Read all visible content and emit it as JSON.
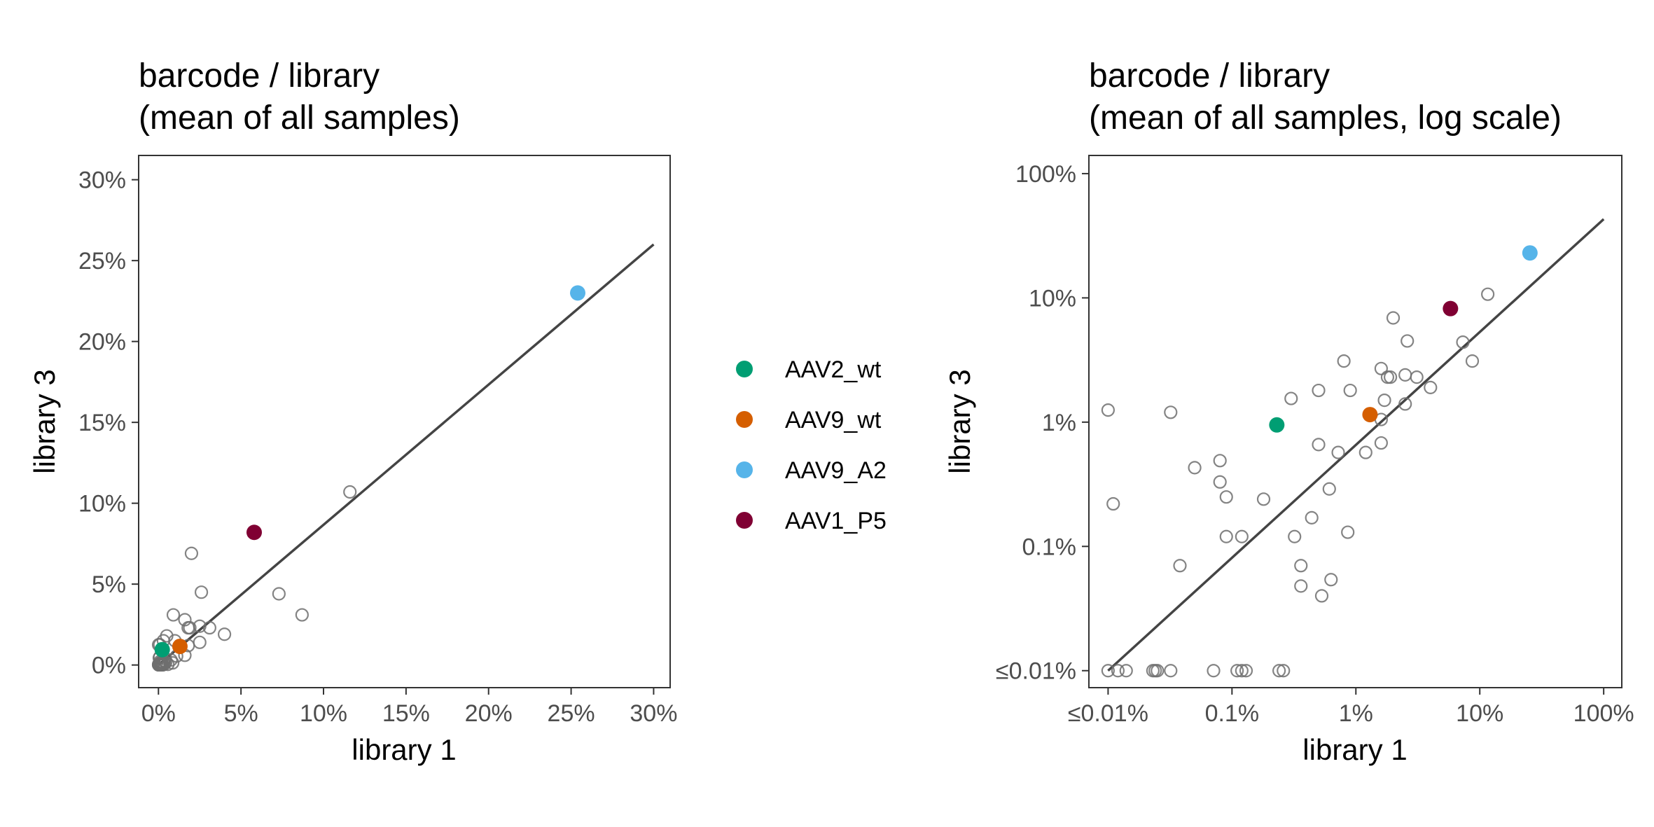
{
  "chart_data": [
    {
      "type": "scatter",
      "title": "barcode / library\n(mean of all samples)",
      "xlabel": "library 1",
      "ylabel": "library 3",
      "scale": "linear",
      "xlim": [
        -0.012,
        0.31
      ],
      "ylim": [
        -0.014,
        0.315
      ],
      "xticks": [
        0,
        0.05,
        0.1,
        0.15,
        0.2,
        0.25,
        0.3
      ],
      "yticks": [
        0,
        0.05,
        0.1,
        0.15,
        0.2,
        0.25,
        0.3
      ],
      "xtick_labels": [
        "0%",
        "5%",
        "10%",
        "15%",
        "20%",
        "25%",
        "30%"
      ],
      "ytick_labels": [
        "0%",
        "5%",
        "10%",
        "15%",
        "20%",
        "25%",
        "30%"
      ],
      "grid": false,
      "reference_line": {
        "x": [
          0.0001,
          0.3
        ],
        "y": [
          0.0001,
          0.26
        ]
      },
      "highlighted": [
        {
          "name": "AAV2_wt",
          "x": 0.0023,
          "y": 0.0095
        },
        {
          "name": "AAV9_wt",
          "x": 0.013,
          "y": 0.0115
        },
        {
          "name": "AAV9_A2",
          "x": 0.254,
          "y": 0.23
        },
        {
          "name": "AAV1_P5",
          "x": 0.058,
          "y": 0.082
        }
      ],
      "points": [
        [
          0.116,
          0.107
        ],
        [
          0.073,
          0.044
        ],
        [
          0.087,
          0.031
        ],
        [
          0.02,
          0.069
        ],
        [
          0.026,
          0.045
        ],
        [
          0.009,
          0.031
        ],
        [
          0.016,
          0.028
        ],
        [
          0.018,
          0.023
        ],
        [
          0.019,
          0.023
        ],
        [
          0.025,
          0.024
        ],
        [
          0.031,
          0.023
        ],
        [
          0.04,
          0.019
        ],
        [
          0.025,
          0.014
        ],
        [
          0.005,
          0.018
        ],
        [
          0.003,
          0.015
        ],
        [
          0.01,
          0.015
        ],
        [
          0.016,
          0.006
        ],
        [
          0.018,
          0.012
        ],
        [
          0.011,
          0.0055
        ],
        [
          0.004,
          0.004
        ],
        [
          0.0008,
          0.0125
        ],
        [
          0.0001,
          0.0125
        ],
        [
          0.001,
          0.0022
        ],
        [
          0.0005,
          0.0043
        ],
        [
          0.0035,
          0.0024
        ],
        [
          0.0019,
          0.0018
        ],
        [
          0.0076,
          0.0031
        ],
        [
          0.0044,
          0.0017
        ],
        [
          0.0057,
          0.0004
        ],
        [
          0.0036,
          0.0005
        ],
        [
          0.0086,
          0.0013
        ],
        [
          0.0008,
          0.0049
        ],
        [
          0.0012,
          0.0012
        ],
        [
          0.0004,
          0.0007
        ],
        [
          0.0018,
          0.0002
        ],
        [
          0.0002,
          0.0001
        ],
        [
          0.0001,
          0.0001
        ],
        [
          0.0003,
          0.0001
        ],
        [
          0.0007,
          0.0001
        ],
        [
          0.0012,
          0.0001
        ],
        [
          0.0024,
          0.0001
        ],
        [
          0.0013,
          0.0002
        ],
        [
          0.0026,
          0.0001
        ],
        [
          0.0006,
          0.0002
        ],
        [
          0.0001,
          0.0003
        ],
        [
          0.0002,
          0.0002
        ],
        [
          0.0005,
          0.0005
        ],
        [
          0.0009,
          0.0001
        ],
        [
          0.0015,
          0.0006
        ],
        [
          0.003,
          0.0015
        ]
      ]
    },
    {
      "type": "scatter",
      "title": "barcode / library\n(mean of all samples, log scale)",
      "xlabel": "library 1",
      "ylabel": "library 3",
      "scale": "log10",
      "xlim": [
        7e-05,
        1.4
      ],
      "ylim": [
        7.3e-05,
        1.4
      ],
      "xticks": [
        0.0001,
        0.001,
        0.01,
        0.1,
        1
      ],
      "yticks": [
        0.0001,
        0.001,
        0.01,
        0.1,
        1
      ],
      "xtick_labels": [
        "≤0.01%",
        "0.1%",
        "1%",
        "10%",
        "100%"
      ],
      "ytick_labels": [
        "≤0.01%",
        "0.1%",
        "1%",
        "10%",
        "100%"
      ],
      "grid": false,
      "reference_line": {
        "x": [
          0.0001,
          1.0
        ],
        "y": [
          0.0001,
          0.43
        ]
      },
      "highlighted": [
        {
          "name": "AAV2_wt",
          "x": 0.0023,
          "y": 0.0095
        },
        {
          "name": "AAV9_wt",
          "x": 0.013,
          "y": 0.0115
        },
        {
          "name": "AAV9_A2",
          "x": 0.254,
          "y": 0.23
        },
        {
          "name": "AAV1_P5",
          "x": 0.058,
          "y": 0.082
        }
      ],
      "points": [
        [
          0.116,
          0.107
        ],
        [
          0.073,
          0.044
        ],
        [
          0.087,
          0.031
        ],
        [
          0.02,
          0.069
        ],
        [
          0.026,
          0.045
        ],
        [
          0.018,
          0.023
        ],
        [
          0.019,
          0.023
        ],
        [
          0.025,
          0.024
        ],
        [
          0.031,
          0.023
        ],
        [
          0.04,
          0.019
        ],
        [
          0.016,
          0.027
        ],
        [
          0.025,
          0.014
        ],
        [
          0.017,
          0.015
        ],
        [
          0.016,
          0.0105
        ],
        [
          0.009,
          0.018
        ],
        [
          0.008,
          0.031
        ],
        [
          0.005,
          0.018
        ],
        [
          0.003,
          0.0155
        ],
        [
          0.016,
          0.0068
        ],
        [
          0.012,
          0.0057
        ],
        [
          0.0072,
          0.0057
        ],
        [
          0.005,
          0.0066
        ],
        [
          0.0008,
          0.0049
        ],
        [
          0.0005,
          0.0043
        ],
        [
          0.0008,
          0.0033
        ],
        [
          0.0009,
          0.0025
        ],
        [
          0.0018,
          0.0024
        ],
        [
          0.0061,
          0.0029
        ],
        [
          0.0044,
          0.0017
        ],
        [
          0.0086,
          0.0013
        ],
        [
          0.0009,
          0.0012
        ],
        [
          0.0012,
          0.0012
        ],
        [
          0.0032,
          0.0012
        ],
        [
          0.00032,
          0.012
        ],
        [
          0.0001,
          0.0125
        ],
        [
          0.00011,
          0.0022
        ],
        [
          0.00038,
          0.0007
        ],
        [
          0.0036,
          0.0007
        ],
        [
          0.0036,
          0.00048
        ],
        [
          0.0063,
          0.00054
        ],
        [
          0.0053,
          0.0004
        ],
        [
          0.0001,
          0.0001
        ],
        [
          0.00012,
          0.0001
        ],
        [
          0.00014,
          0.0001
        ],
        [
          0.00023,
          0.0001
        ],
        [
          0.00024,
          0.0001
        ],
        [
          0.00025,
          0.0001
        ],
        [
          0.00032,
          0.0001
        ],
        [
          0.00071,
          0.0001
        ],
        [
          0.0011,
          0.0001
        ],
        [
          0.0012,
          0.0001
        ],
        [
          0.0013,
          0.0001
        ],
        [
          0.0024,
          0.0001
        ],
        [
          0.0026,
          0.0001
        ]
      ]
    }
  ],
  "legend": {
    "position": "center-between-panels",
    "items": [
      {
        "name": "AAV2_wt",
        "color": "#009E73"
      },
      {
        "name": "AAV9_wt",
        "color": "#D55E00"
      },
      {
        "name": "AAV9_A2",
        "color": "#56B4E9"
      },
      {
        "name": "AAV1_P5",
        "color": "#800033"
      }
    ]
  },
  "colors": {
    "panel_border": "#333333",
    "reference_line": "#444444",
    "hollow_point": "#6e6e6e",
    "tick_label": "#4d4d4d"
  }
}
